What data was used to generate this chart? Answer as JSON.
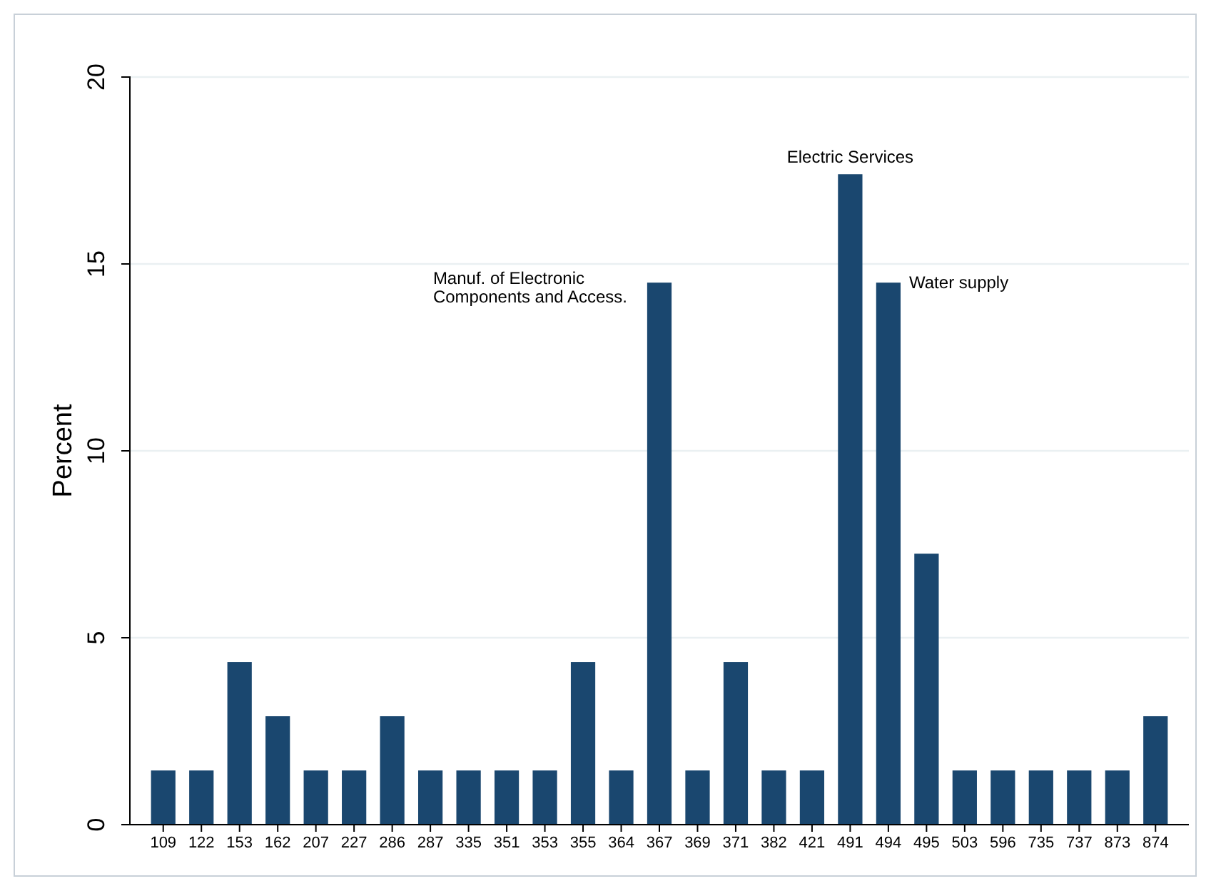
{
  "chart_data": {
    "type": "bar",
    "ylabel": "Percent",
    "categories": [
      "109",
      "122",
      "153",
      "162",
      "207",
      "227",
      "286",
      "287",
      "335",
      "351",
      "353",
      "355",
      "364",
      "367",
      "369",
      "371",
      "382",
      "421",
      "491",
      "494",
      "495",
      "503",
      "596",
      "735",
      "737",
      "873",
      "874"
    ],
    "values": [
      1.45,
      1.45,
      4.35,
      2.9,
      1.45,
      1.45,
      2.9,
      1.45,
      1.45,
      1.45,
      1.45,
      4.35,
      1.45,
      14.5,
      1.45,
      4.35,
      1.45,
      1.45,
      17.4,
      14.5,
      7.25,
      1.45,
      1.45,
      1.45,
      1.45,
      1.45,
      2.9
    ],
    "color": "#1a476f",
    "ylim": [
      0,
      20
    ],
    "yticks": [
      0,
      5,
      10,
      15,
      20
    ],
    "grid": "y",
    "annotations": [
      {
        "text": "Manuf. of Electronic\nComponents and Access.",
        "x": "367",
        "y": 14.5
      },
      {
        "text": "Electric Services",
        "x": "491",
        "y": 17.4
      },
      {
        "text": "Water supply",
        "x": "494",
        "y": 14.5
      }
    ]
  }
}
